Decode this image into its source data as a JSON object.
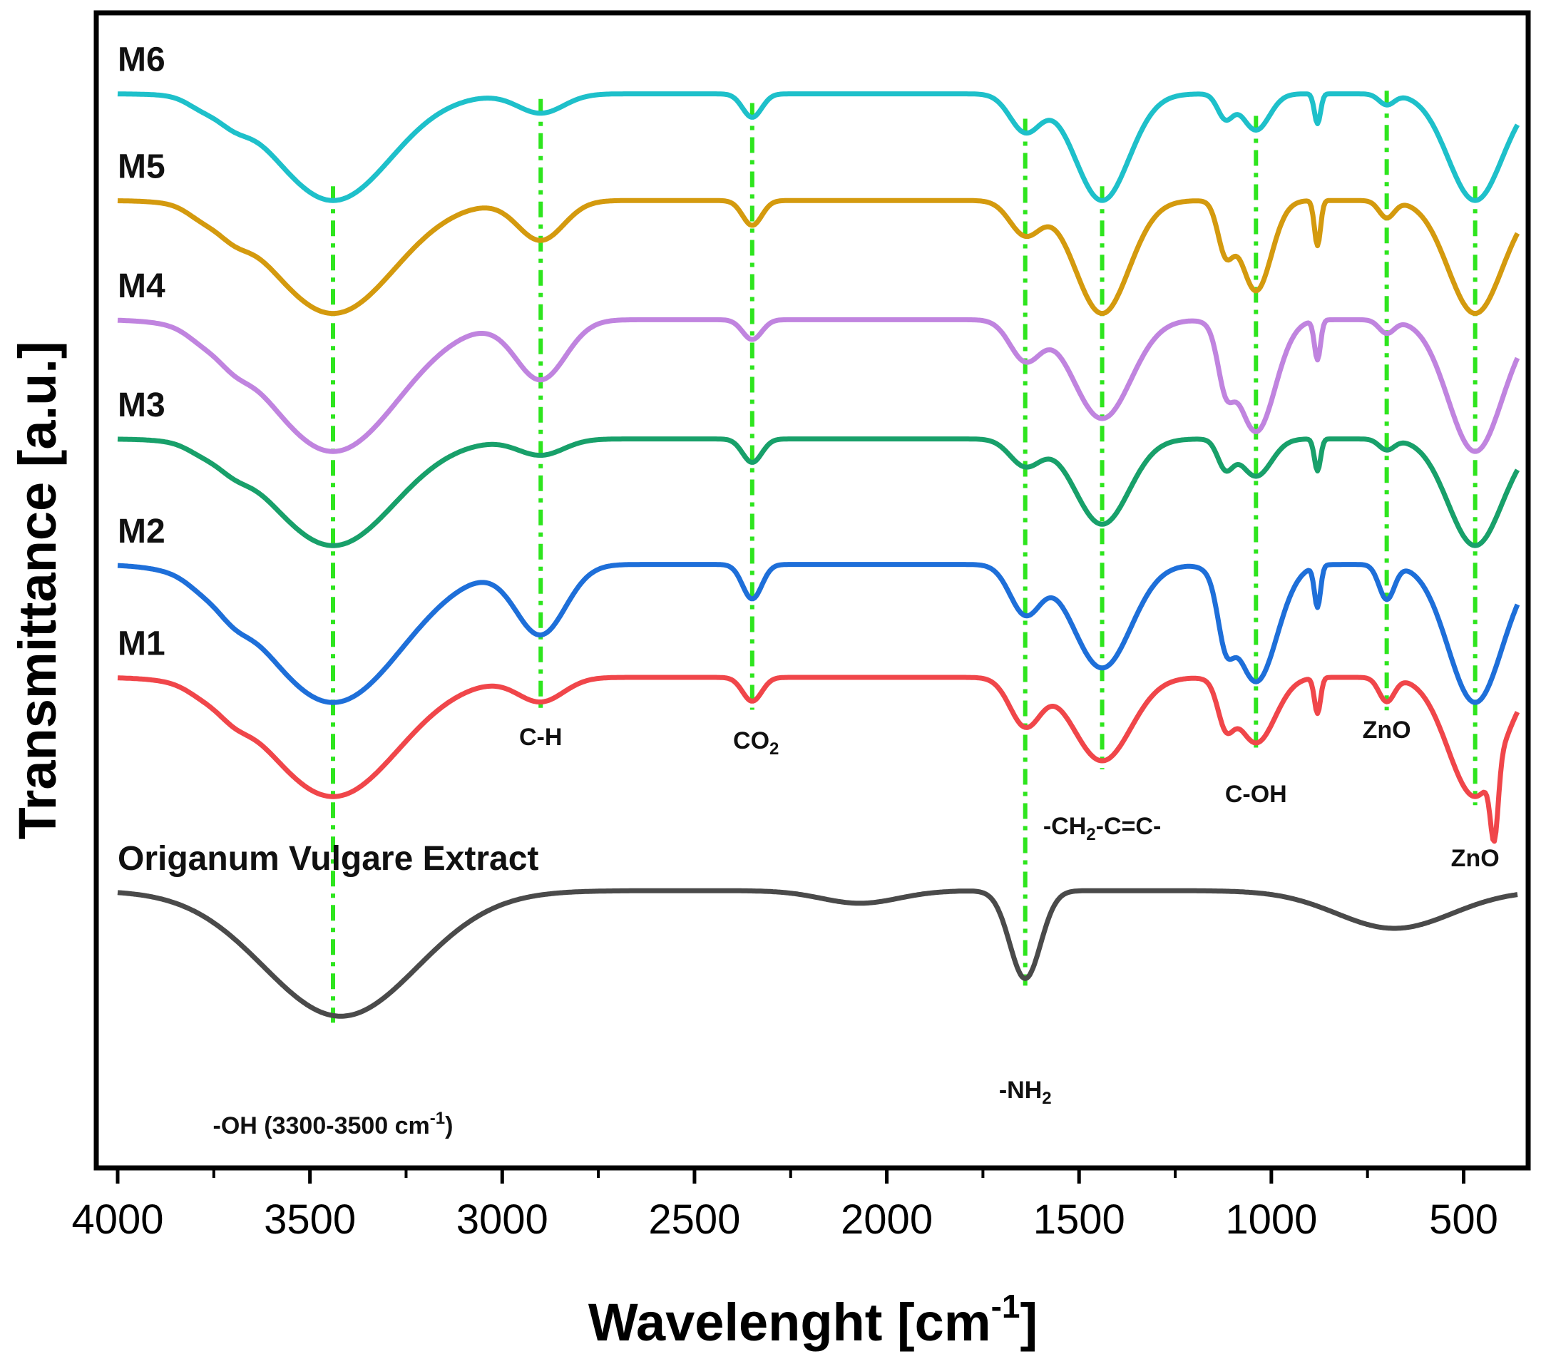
{
  "chart_data": {
    "type": "line",
    "title": "",
    "xlabel": "Wavelenght [cm",
    "xlabel_sup": "-1",
    "xlabel_end": "]",
    "ylabel": "Transmittance [a.u.]",
    "xlim": [
      4000,
      360
    ],
    "xticks": [
      4000,
      3500,
      3000,
      2500,
      2000,
      1500,
      1000,
      500
    ],
    "x_tick_labels": [
      "4000",
      "3500",
      "3000",
      "2500",
      "2000",
      "1500",
      "1000",
      "500"
    ],
    "grid": false,
    "series": [
      {
        "name": "M6",
        "label": "M6",
        "color": "#1EC0CA",
        "offset": 0.93,
        "depth": 0.17,
        "bands": [
          [
            3780,
            40,
            0.08
          ],
          [
            3700,
            40,
            0.12
          ],
          [
            3440,
            150,
            1.0
          ],
          [
            2900,
            60,
            0.18
          ],
          [
            2350,
            25,
            0.22
          ],
          [
            1640,
            40,
            0.35
          ],
          [
            1440,
            70,
            1.0
          ],
          [
            1120,
            20,
            0.22
          ],
          [
            1040,
            35,
            0.34
          ],
          [
            880,
            8,
            0.28
          ],
          [
            700,
            20,
            0.1
          ],
          [
            470,
            70,
            1.0
          ]
        ]
      },
      {
        "name": "M5",
        "label": "M5",
        "color": "#D49A0E",
        "offset": 0.76,
        "depth": 0.18,
        "bands": [
          [
            3780,
            40,
            0.08
          ],
          [
            3700,
            40,
            0.12
          ],
          [
            3440,
            160,
            1.0
          ],
          [
            2900,
            60,
            0.35
          ],
          [
            2350,
            25,
            0.22
          ],
          [
            1640,
            40,
            0.3
          ],
          [
            1440,
            70,
            1.0
          ],
          [
            1120,
            20,
            0.4
          ],
          [
            1040,
            40,
            0.8
          ],
          [
            880,
            8,
            0.4
          ],
          [
            700,
            20,
            0.15
          ],
          [
            470,
            70,
            1.0
          ]
        ]
      },
      {
        "name": "M4",
        "label": "M4",
        "color": "#C084DF",
        "offset": 0.57,
        "depth": 0.21,
        "bands": [
          [
            3780,
            40,
            0.06
          ],
          [
            3700,
            40,
            0.1
          ],
          [
            3440,
            170,
            1.0
          ],
          [
            2900,
            65,
            0.45
          ],
          [
            2350,
            25,
            0.15
          ],
          [
            1640,
            40,
            0.3
          ],
          [
            1440,
            75,
            0.75
          ],
          [
            1120,
            20,
            0.35
          ],
          [
            1040,
            50,
            0.85
          ],
          [
            880,
            8,
            0.3
          ],
          [
            700,
            20,
            0.1
          ],
          [
            470,
            70,
            1.0
          ]
        ]
      },
      {
        "name": "M3",
        "label": "M3",
        "color": "#18A06A",
        "offset": 0.38,
        "depth": 0.17,
        "bands": [
          [
            3780,
            40,
            0.06
          ],
          [
            3700,
            40,
            0.1
          ],
          [
            3440,
            160,
            1.0
          ],
          [
            2900,
            60,
            0.15
          ],
          [
            2350,
            25,
            0.22
          ],
          [
            1640,
            40,
            0.25
          ],
          [
            1440,
            70,
            0.8
          ],
          [
            1120,
            20,
            0.25
          ],
          [
            1040,
            40,
            0.35
          ],
          [
            880,
            8,
            0.3
          ],
          [
            700,
            20,
            0.1
          ],
          [
            470,
            70,
            1.0
          ]
        ]
      },
      {
        "name": "M2",
        "label": "M2",
        "color": "#1E6FD9",
        "offset": 0.18,
        "depth": 0.22,
        "bands": [
          [
            3780,
            40,
            0.05
          ],
          [
            3700,
            40,
            0.1
          ],
          [
            3440,
            180,
            1.0
          ],
          [
            2900,
            65,
            0.5
          ],
          [
            2350,
            25,
            0.25
          ],
          [
            1640,
            40,
            0.35
          ],
          [
            1440,
            75,
            0.75
          ],
          [
            1120,
            20,
            0.35
          ],
          [
            1040,
            55,
            0.85
          ],
          [
            880,
            8,
            0.3
          ],
          [
            700,
            20,
            0.25
          ],
          [
            470,
            70,
            1.0
          ]
        ]
      },
      {
        "name": "M1",
        "label": "M1",
        "color": "#F0464A",
        "offset": 0.0,
        "depth": 0.19,
        "bands": [
          [
            3780,
            40,
            0.05
          ],
          [
            3700,
            40,
            0.1
          ],
          [
            3440,
            170,
            1.0
          ],
          [
            2900,
            60,
            0.2
          ],
          [
            2350,
            25,
            0.2
          ],
          [
            1640,
            40,
            0.4
          ],
          [
            1440,
            75,
            0.7
          ],
          [
            1120,
            20,
            0.3
          ],
          [
            1040,
            50,
            0.55
          ],
          [
            880,
            8,
            0.3
          ],
          [
            700,
            20,
            0.2
          ],
          [
            470,
            70,
            1.0
          ],
          [
            420,
            10,
            0.6
          ]
        ]
      },
      {
        "name": "Origanum Vulgare Extract",
        "label": "Origanum Vulgare Extract",
        "color": "#4A4A4A",
        "offset": -0.34,
        "depth": 0.2,
        "bands": [
          [
            3420,
            200,
            1.0
          ],
          [
            2070,
            100,
            0.1
          ],
          [
            1640,
            40,
            0.7
          ],
          [
            680,
            150,
            0.3
          ]
        ]
      }
    ],
    "reference_lines": [
      3440,
      2900,
      2350,
      1640,
      1440,
      1040,
      700,
      470
    ],
    "annotations": [
      {
        "text": "C-H",
        "x": 2900
      },
      {
        "text": "CO",
        "sub": "2",
        "x": 2340
      },
      {
        "text": "-CH",
        "sub": "2",
        "rest": "-C=C-",
        "x": 1440
      },
      {
        "text": "C-OH",
        "x": 1040
      },
      {
        "text": "ZnO",
        "x": 700
      },
      {
        "text": "ZnO",
        "x": 470
      },
      {
        "text": "-NH",
        "sub": "2",
        "x": 1640
      },
      {
        "text": "-OH (3300-3500 cm",
        "sup": "-1",
        "rest": ")",
        "x": 3440
      }
    ]
  }
}
